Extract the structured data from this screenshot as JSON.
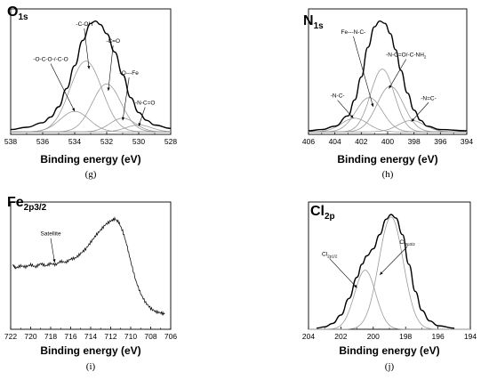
{
  "chart_data": [
    {
      "id": "g",
      "type": "line",
      "title": {
        "main": "O",
        "sub": "1s"
      },
      "caption": "(g)",
      "xlabel": "Binding energy (eV)",
      "xlim": [
        538,
        528
      ],
      "xticks": [
        538,
        536,
        534,
        532,
        530,
        528
      ],
      "envelope": [
        [
          538,
          0.02
        ],
        [
          537,
          0.04
        ],
        [
          536,
          0.08
        ],
        [
          535.5,
          0.13
        ],
        [
          535,
          0.22
        ],
        [
          534.5,
          0.38
        ],
        [
          534,
          0.58
        ],
        [
          533.5,
          0.8
        ],
        [
          533,
          0.95
        ],
        [
          532.7,
          0.97
        ],
        [
          532.4,
          0.94
        ],
        [
          532,
          0.86
        ],
        [
          531.5,
          0.7
        ],
        [
          531,
          0.5
        ],
        [
          530.5,
          0.3
        ],
        [
          530,
          0.17
        ],
        [
          529.5,
          0.1
        ],
        [
          529,
          0.06
        ],
        [
          528,
          0.03
        ]
      ],
      "series": [
        {
          "peaks": [
            {
              "center": 533.3,
              "height": 0.62,
              "width": 1.0
            }
          ]
        },
        {
          "peaks": [
            {
              "center": 532.0,
              "height": 0.42,
              "width": 0.9
            }
          ]
        },
        {
          "peaks": [
            {
              "center": 534.0,
              "height": 0.18,
              "width": 0.9
            }
          ]
        },
        {
          "peaks": [
            {
              "center": 531.0,
              "height": 0.12,
              "width": 0.8
            }
          ]
        },
        {
          "peaks": [
            {
              "center": 530.0,
              "height": 0.06,
              "width": 0.8
            }
          ]
        }
      ],
      "annotations": [
        {
          "text": "-C-OH",
          "sub": "",
          "x": 533.4,
          "y": 0.93,
          "ax": 533.1,
          "ay": 0.55
        },
        {
          "text": "-C=O",
          "sub": "",
          "x": 531.6,
          "y": 0.78,
          "ax": 531.9,
          "ay": 0.36
        },
        {
          "text": "-O-C-O-/-C-O",
          "sub": "",
          "x": 535.5,
          "y": 0.62,
          "ax": 534.0,
          "ay": 0.18
        },
        {
          "text": "-O---Fe",
          "sub": "",
          "x": 530.6,
          "y": 0.5,
          "ax": 531.0,
          "ay": 0.1
        },
        {
          "text": "-N-C=O",
          "sub": "",
          "x": 529.6,
          "y": 0.24,
          "ax": 530.0,
          "ay": 0.05
        }
      ]
    },
    {
      "id": "h",
      "type": "line",
      "title": {
        "main": "N",
        "sub": "1s"
      },
      "caption": "(h)",
      "xlabel": "Binding energy (eV)",
      "xlim": [
        406,
        394
      ],
      "xticks": [
        406,
        404,
        402,
        400,
        398,
        396,
        394
      ],
      "envelope": [
        [
          406,
          0.01
        ],
        [
          405,
          0.02
        ],
        [
          404,
          0.05
        ],
        [
          403,
          0.14
        ],
        [
          402.5,
          0.28
        ],
        [
          402,
          0.48
        ],
        [
          401.5,
          0.74
        ],
        [
          401,
          0.92
        ],
        [
          400.6,
          0.97
        ],
        [
          400.2,
          0.95
        ],
        [
          399.8,
          0.86
        ],
        [
          399.4,
          0.72
        ],
        [
          399,
          0.54
        ],
        [
          398.5,
          0.34
        ],
        [
          398,
          0.19
        ],
        [
          397.5,
          0.1
        ],
        [
          397,
          0.05
        ],
        [
          396,
          0.02
        ],
        [
          394,
          0.01
        ]
      ],
      "series": [
        {
          "peaks": [
            {
              "center": 400.4,
              "height": 0.55,
              "width": 0.9
            }
          ]
        },
        {
          "peaks": [
            {
              "center": 399.8,
              "height": 0.4,
              "width": 1.0
            }
          ]
        },
        {
          "peaks": [
            {
              "center": 401.4,
              "height": 0.3,
              "width": 1.0
            }
          ]
        },
        {
          "peaks": [
            {
              "center": 402.5,
              "height": 0.12,
              "width": 1.0
            }
          ]
        },
        {
          "peaks": [
            {
              "center": 398.2,
              "height": 0.1,
              "width": 1.0
            }
          ]
        }
      ],
      "annotations": [
        {
          "text": "Fe---N-C-",
          "sub": "",
          "x": 402.6,
          "y": 0.86,
          "ax": 401.1,
          "ay": 0.22
        },
        {
          "text": "-N-C=O/-C-NH",
          "sub": "2",
          "x": 398.6,
          "y": 0.66,
          "ax": 399.9,
          "ay": 0.38
        },
        {
          "text": "-N-C-",
          "sub": "",
          "x": 403.8,
          "y": 0.3,
          "ax": 402.6,
          "ay": 0.12
        },
        {
          "text": "-N=C-",
          "sub": "",
          "x": 396.9,
          "y": 0.28,
          "ax": 398.2,
          "ay": 0.09
        }
      ]
    },
    {
      "id": "i",
      "type": "line",
      "title": {
        "main": "Fe",
        "sub": "2p3/2"
      },
      "caption": "(i)",
      "xlabel": "Binding energy (eV)",
      "xlim": [
        722,
        706
      ],
      "xticks": [
        722,
        720,
        718,
        716,
        714,
        712,
        710,
        708,
        706
      ],
      "series": [
        {
          "points": [
            [
              721.8,
              0.52
            ],
            [
              721.5,
              0.49
            ],
            [
              721,
              0.51
            ],
            [
              720.5,
              0.5
            ],
            [
              720,
              0.52
            ],
            [
              719.5,
              0.5
            ],
            [
              719,
              0.53
            ],
            [
              718.5,
              0.51
            ],
            [
              718,
              0.53
            ],
            [
              717.5,
              0.52
            ],
            [
              717,
              0.55
            ],
            [
              716.5,
              0.54
            ],
            [
              716,
              0.57
            ],
            [
              715.5,
              0.58
            ],
            [
              715,
              0.62
            ],
            [
              714.5,
              0.66
            ],
            [
              714,
              0.72
            ],
            [
              713.5,
              0.78
            ],
            [
              713,
              0.83
            ],
            [
              712.5,
              0.88
            ],
            [
              712,
              0.91
            ],
            [
              711.6,
              0.93
            ],
            [
              711.2,
              0.9
            ],
            [
              710.8,
              0.82
            ],
            [
              710.4,
              0.7
            ],
            [
              710,
              0.55
            ],
            [
              709.5,
              0.38
            ],
            [
              709,
              0.26
            ],
            [
              708.5,
              0.18
            ],
            [
              708,
              0.13
            ],
            [
              707.5,
              0.1
            ],
            [
              707,
              0.09
            ],
            [
              706.6,
              0.08
            ]
          ]
        }
      ],
      "annotations": [
        {
          "text": "Satellite",
          "sub": "",
          "x": 718.0,
          "y": 0.78,
          "ax": 717.6,
          "ay": 0.54
        }
      ]
    },
    {
      "id": "j",
      "type": "line",
      "title": {
        "main": "Cl",
        "sub": "2p"
      },
      "caption": "(j)",
      "xlabel": "Binding energy (eV)",
      "xlim": [
        204,
        194
      ],
      "xticks": [
        204,
        202,
        200,
        198,
        196,
        194
      ],
      "envelope": [
        [
          203.5,
          0.01
        ],
        [
          203,
          0.02
        ],
        [
          202.5,
          0.05
        ],
        [
          202,
          0.12
        ],
        [
          201.5,
          0.26
        ],
        [
          201,
          0.44
        ],
        [
          200.7,
          0.55
        ],
        [
          200.4,
          0.62
        ],
        [
          200,
          0.68
        ],
        [
          199.6,
          0.8
        ],
        [
          199.2,
          0.93
        ],
        [
          198.9,
          0.97
        ],
        [
          198.6,
          0.94
        ],
        [
          198.2,
          0.8
        ],
        [
          197.8,
          0.55
        ],
        [
          197.4,
          0.32
        ],
        [
          197,
          0.16
        ],
        [
          196.5,
          0.07
        ],
        [
          196,
          0.03
        ],
        [
          195,
          0.01
        ]
      ],
      "series": [
        {
          "peaks": [
            {
              "center": 198.9,
              "height": 0.95,
              "width": 0.75
            }
          ]
        },
        {
          "peaks": [
            {
              "center": 200.5,
              "height": 0.5,
              "width": 0.65
            }
          ]
        }
      ],
      "annotations": [
        {
          "text": "Cl",
          "sub": "2p1/2",
          "x": 202.7,
          "y": 0.62,
          "ax": 201.0,
          "ay": 0.35
        },
        {
          "text": "Cl",
          "sub": "2p3/2",
          "x": 197.9,
          "y": 0.72,
          "ax": 199.6,
          "ay": 0.46
        }
      ]
    }
  ]
}
